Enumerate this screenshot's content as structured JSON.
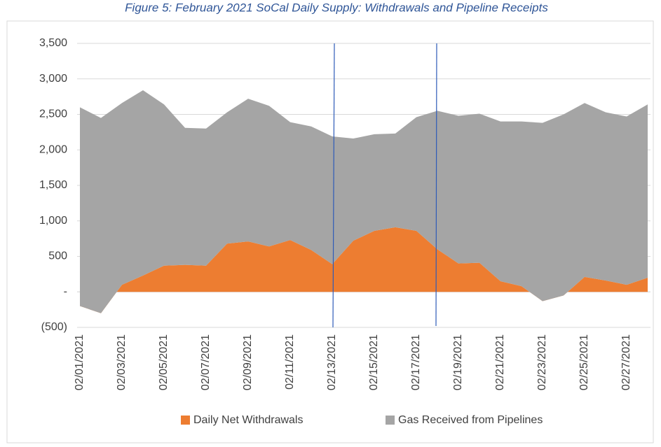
{
  "chart_data": {
    "type": "stacked_area",
    "title": "Figure 5: February 2021 SoCal Daily Supply: Withdrawals and Pipeline Receipts",
    "categories": [
      "02/01/2021",
      null,
      "02/03/2021",
      null,
      "02/05/2021",
      null,
      "02/07/2021",
      null,
      "02/09/2021",
      null,
      "02/11/2021",
      null,
      "02/13/2021",
      null,
      "02/15/2021",
      null,
      "02/17/2021",
      null,
      "02/19/2021",
      null,
      "02/21/2021",
      null,
      "02/23/2021",
      null,
      "02/25/2021",
      null,
      "02/27/2021",
      null
    ],
    "series": [
      {
        "name": "Daily Net Withdrawals",
        "color": "#ed7d31",
        "values": [
          -200,
          -300,
          100,
          230,
          370,
          380,
          370,
          680,
          710,
          640,
          730,
          590,
          390,
          720,
          860,
          910,
          860,
          600,
          400,
          410,
          150,
          80,
          -130,
          -50,
          210,
          160,
          100,
          200
        ]
      },
      {
        "name": "Gas Received from Pipelines",
        "color": "#a5a5a5",
        "values": [
          2800,
          2750,
          2560,
          2610,
          2270,
          1930,
          1930,
          1850,
          2010,
          1980,
          1660,
          1740,
          1800,
          1440,
          1360,
          1320,
          1600,
          1950,
          2080,
          2100,
          2250,
          2320,
          2510,
          2550,
          2450,
          2370,
          2370,
          2440
        ]
      }
    ],
    "ylim": [
      -500,
      3500
    ],
    "yticks": [
      {
        "value": -500,
        "label": "(500)"
      },
      {
        "value": 0,
        "label": "-"
      },
      {
        "value": 500,
        "label": "500"
      },
      {
        "value": 1000,
        "label": "1,000"
      },
      {
        "value": 1500,
        "label": "1,500"
      },
      {
        "value": 2000,
        "label": "2,000"
      },
      {
        "value": 2500,
        "label": "2,500"
      },
      {
        "value": 3000,
        "label": "3,000"
      },
      {
        "value": 3500,
        "label": "3,500"
      }
    ],
    "grid": true
  }
}
